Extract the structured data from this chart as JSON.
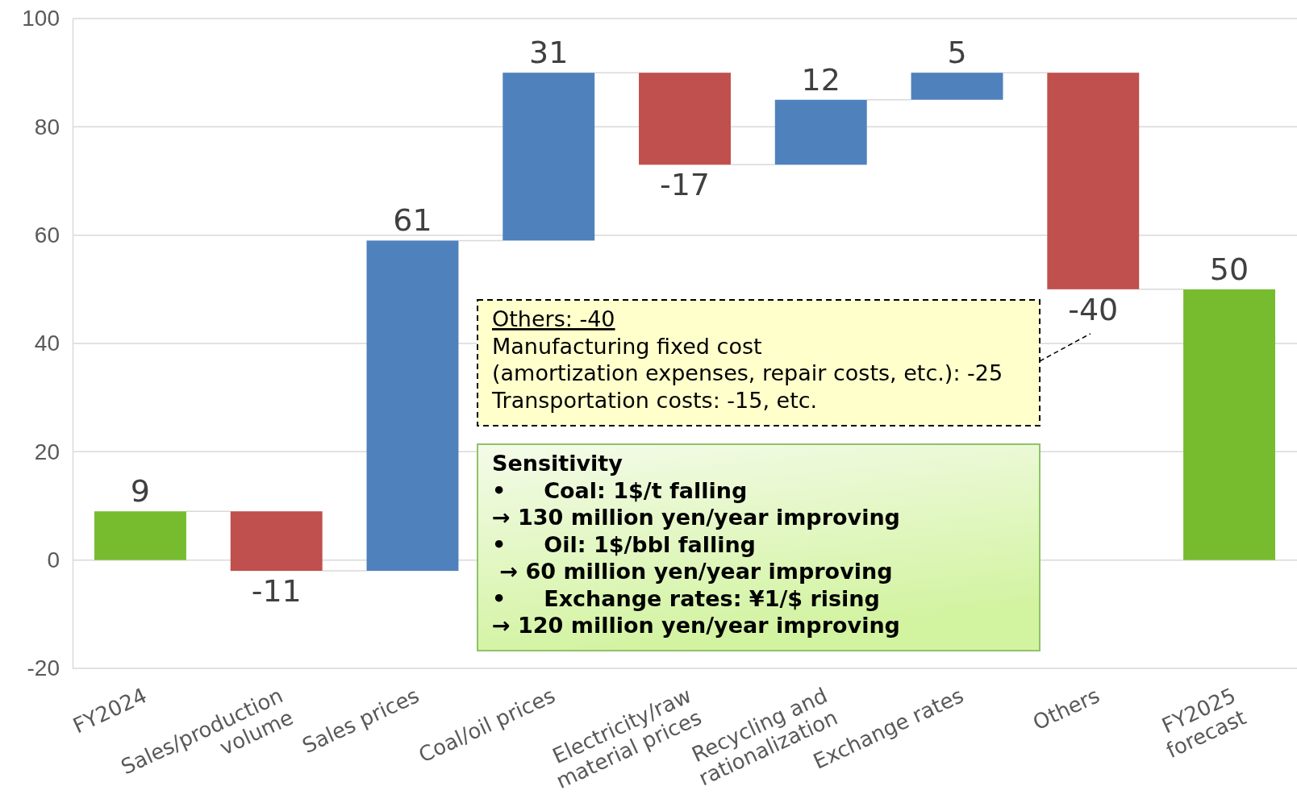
{
  "chart_data": {
    "type": "bar",
    "categories": [
      "FY2024",
      "Sales/production\nvolume",
      "Sales prices",
      "Coal/oil prices",
      "Electricity/raw\nmaterial prices",
      "Recycling and\nrationalization",
      "Exchange rates",
      "Others",
      "FY2025\nforecast"
    ],
    "values": [
      9,
      -11,
      61,
      31,
      -17,
      12,
      5,
      -40,
      50
    ],
    "base": [
      0,
      9,
      -2,
      59,
      90,
      73,
      85,
      90,
      0
    ],
    "colors": [
      "#77bc2f",
      "#c0504d",
      "#4f81bd",
      "#4f81bd",
      "#c0504d",
      "#4f81bd",
      "#4f81bd",
      "#c0504d",
      "#77bc2f"
    ],
    "ylim": [
      -20,
      100
    ],
    "yticks": [
      -20,
      0,
      20,
      40,
      60,
      80,
      100
    ],
    "grid": "y",
    "data_labels": true,
    "annotations": [
      "Others: -40\nManufacturing fixed cost\n(amortization expenses, repair costs, etc.): -25\nTransportation costs: -15, etc.",
      "Sensitivity\n•     Coal: 1$/t falling\n→ 130 million yen/year improving\n•     Oil: 1$/bbl falling\n → 60 million yen/year improving\n•     Exchange rates: ¥1/$ rising\n→ 120 million yen/year improving"
    ]
  }
}
